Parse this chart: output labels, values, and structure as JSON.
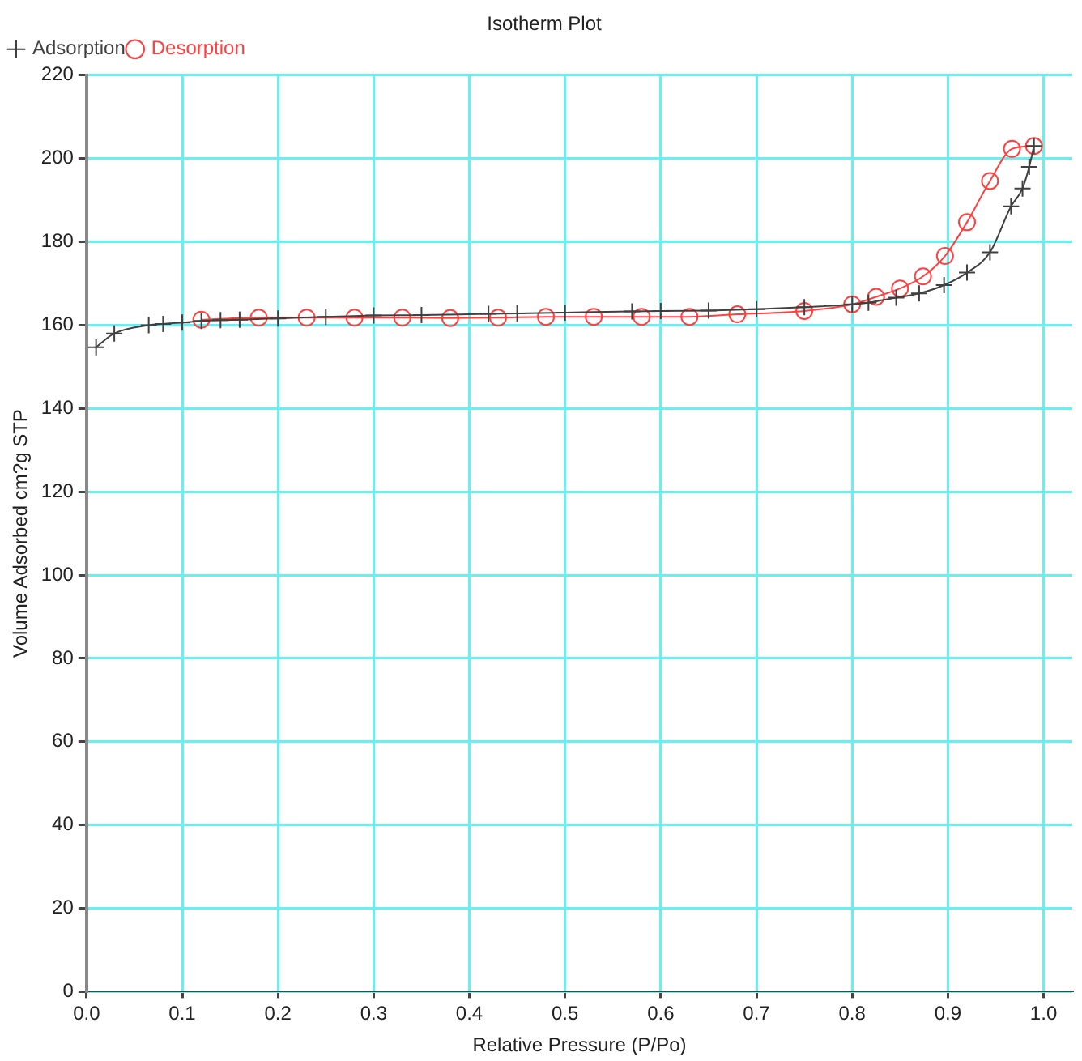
{
  "chart_data": {
    "type": "line",
    "title": "Isotherm Plot",
    "xlabel": "Relative Pressure (P/Po)",
    "ylabel": "Volume Adsorbed cm?g STP",
    "xlim": [
      0,
      1.03
    ],
    "xticks": [
      {
        "value": 0,
        "label": "0.0"
      },
      0.1,
      0.2,
      0.3,
      0.4,
      0.5,
      0.6,
      0.7,
      0.8,
      0.9,
      {
        "value": 1,
        "label": "1.0"
      }
    ],
    "ylim": [
      0,
      220
    ],
    "yticks": [
      0,
      20,
      40,
      60,
      80,
      100,
      120,
      140,
      160,
      180,
      200,
      220
    ],
    "grid": true,
    "legend": "top left",
    "line_style": "solid",
    "series": [
      {
        "name": "Adsorption",
        "color": "#404040",
        "marker": "cross",
        "x": [
          0.01,
          0.029,
          0.065,
          0.08,
          0.1,
          0.12,
          0.14,
          0.16,
          0.2,
          0.25,
          0.3,
          0.35,
          0.42,
          0.45,
          0.5,
          0.57,
          0.6,
          0.65,
          0.7,
          0.75,
          0.8,
          0.817,
          0.846,
          0.87,
          0.896,
          0.92,
          0.944,
          0.966,
          0.978,
          0.985,
          0.99
        ],
        "values": [
          154.7,
          158,
          160,
          160.3,
          160.6,
          161,
          161.2,
          161.3,
          161.6,
          162,
          162.3,
          162.4,
          162.7,
          162.8,
          163,
          163.3,
          163.4,
          163.5,
          163.8,
          164.3,
          165,
          165.4,
          166.6,
          167.6,
          169.6,
          172.6,
          177.5,
          188.5,
          192.8,
          198,
          203
        ]
      },
      {
        "name": "Desorption",
        "color": "#ff4040",
        "marker": "circle",
        "x": [
          0.99,
          0.967,
          0.944,
          0.92,
          0.897,
          0.874,
          0.85,
          0.825,
          0.8,
          0.75,
          0.68,
          0.63,
          0.58,
          0.53,
          0.48,
          0.43,
          0.38,
          0.33,
          0.28,
          0.23,
          0.18,
          0.12
        ],
        "values": [
          203,
          202.3,
          194.6,
          184.7,
          176.6,
          171.7,
          168.8,
          166.8,
          165,
          163.4,
          162.6,
          162,
          162,
          162,
          162,
          161.8,
          161.7,
          161.8,
          161.8,
          161.8,
          161.8,
          161.3
        ]
      }
    ]
  }
}
